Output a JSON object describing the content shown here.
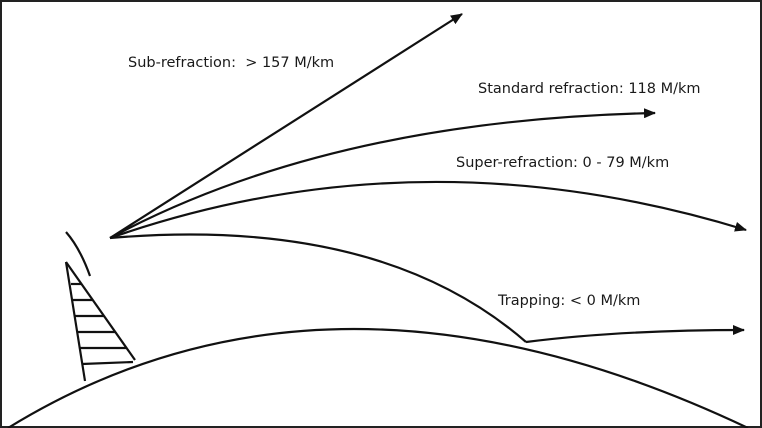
{
  "labels": {
    "sub_refraction": "Sub-refraction:  > 157 M/km",
    "standard_refraction": "Standard refraction: 118 M/km",
    "super_refraction": "Super-refraction: 0 - 79 M/km",
    "trapping": "Trapping: < 0 M/km"
  }
}
